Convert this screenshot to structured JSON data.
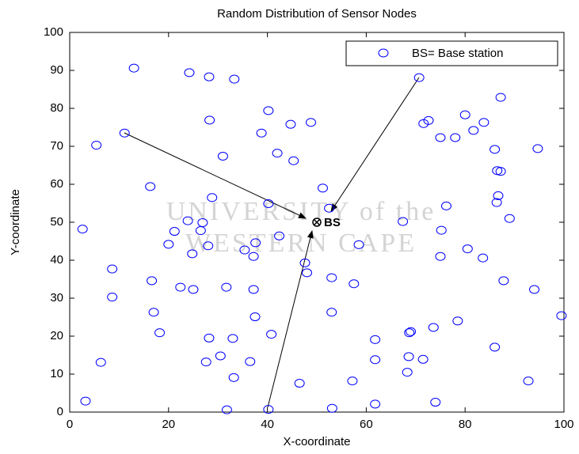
{
  "chart_data": {
    "type": "scatter",
    "title": "Random Distribution of Sensor Nodes",
    "x_label": "X-coordinate",
    "y_label": "Y-coordinate",
    "xlim": [
      0,
      100
    ],
    "ylim": [
      0,
      100
    ],
    "xticks": [
      0,
      20,
      40,
      60,
      80,
      100
    ],
    "yticks": [
      0,
      10,
      20,
      30,
      40,
      50,
      60,
      70,
      80,
      90,
      100
    ],
    "grid": false,
    "legend": "upper right",
    "series": [
      {
        "name": "BS= Base station",
        "color": "#0000ff",
        "x": [
          13,
          24.2,
          28.2,
          33.3,
          70.7,
          87.2,
          40.2,
          80,
          83.8,
          28.3,
          71.6,
          72.6,
          44.7,
          48.8,
          11.1,
          38.8,
          81.7,
          5.4,
          75,
          78,
          86,
          94.7,
          42,
          31,
          45.3,
          86.5,
          87.2,
          51.2,
          16.3,
          40.2,
          76.2,
          86.4,
          86.7,
          28.8,
          2.6,
          23.9,
          26.9,
          21.2,
          26.5,
          67.4,
          75.2,
          89,
          37.6,
          42.4,
          20,
          28,
          58.5,
          24.8,
          35.4,
          37.2,
          80.5,
          75,
          83.6,
          8.6,
          47.6,
          48,
          16.6,
          53,
          57.5,
          87.8,
          22.4,
          25,
          31.7,
          37.2,
          8.6,
          17,
          53,
          37.5,
          94,
          18.2,
          40.8,
          28.2,
          33,
          61.8,
          69,
          68.7,
          73.6,
          78.5,
          86,
          99.5,
          6.3,
          27.6,
          30.5,
          36.5,
          61.8,
          68.6,
          71.5,
          68.3,
          33.2,
          46.5,
          57.2,
          92.8,
          3.2,
          31.8,
          40.2,
          53.1,
          61.8,
          74,
          52.5
        ],
        "values": [
          90.6,
          89.4,
          88.3,
          87.7,
          88.1,
          82.9,
          79.4,
          78.3,
          76.3,
          76.9,
          76,
          76.8,
          75.8,
          76.3,
          73.5,
          73.5,
          74.2,
          70.3,
          72.3,
          72.3,
          69.2,
          69.4,
          68.2,
          67.4,
          66.2,
          63.6,
          63.4,
          59,
          59.4,
          54.9,
          54.3,
          55.2,
          57,
          56.5,
          48.2,
          50.4,
          49.9,
          47.6,
          47.8,
          50.2,
          47.9,
          51,
          44.6,
          46.4,
          44.2,
          43.8,
          44.1,
          41.7,
          42.7,
          41,
          43,
          41,
          40.6,
          37.7,
          39.3,
          36.7,
          34.6,
          35.4,
          33.8,
          34.6,
          32.9,
          32.3,
          32.9,
          32.3,
          30.3,
          26.3,
          26.3,
          25.1,
          32.3,
          20.9,
          20.5,
          19.5,
          19.4,
          19.1,
          21.2,
          20.9,
          22.3,
          24,
          17.1,
          25.4,
          13.1,
          13.2,
          14.8,
          13.3,
          13.8,
          14.6,
          13.9,
          10.5,
          9.1,
          7.6,
          8.2,
          8.2,
          2.9,
          0.6,
          0.7,
          1,
          2.1,
          2.6,
          53.7
        ]
      }
    ],
    "base_station": {
      "label": "BS",
      "x": 50,
      "y": 50
    },
    "watermark": [
      "UNIVERSITY of the",
      "WESTERN CAPE"
    ]
  }
}
